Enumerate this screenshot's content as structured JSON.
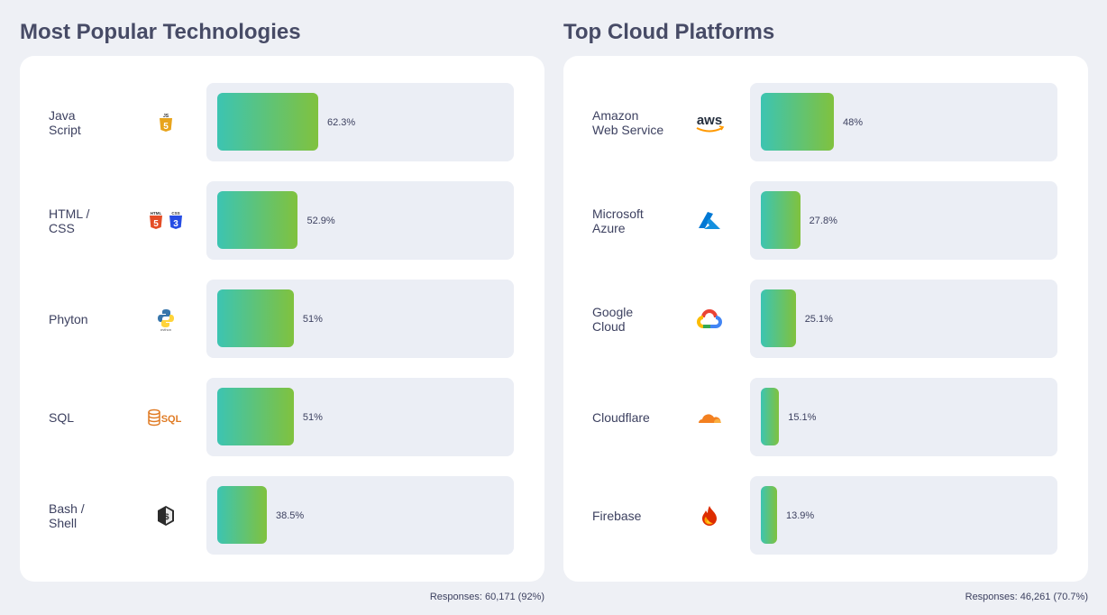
{
  "chart_data": [
    {
      "type": "bar",
      "orientation": "horizontal",
      "title": "Most Popular Technologies",
      "categories": [
        "Java\nScript",
        "HTML /\nCSS",
        "Phyton",
        "SQL",
        "Bash /\nShell"
      ],
      "icons": [
        "javascript-icon",
        "html-css-icon",
        "python-icon",
        "sql-icon",
        "bash-icon"
      ],
      "values": [
        62.3,
        52.9,
        51,
        51,
        38.5
      ],
      "value_labels": [
        "62.3%",
        "52.9%",
        "51%",
        "51%",
        "38.5%"
      ],
      "footer": "Responses: 60,171 (92%)"
    },
    {
      "type": "bar",
      "orientation": "horizontal",
      "title": "Top Cloud Platforms",
      "categories": [
        "Amazon\nWeb Service",
        "Microsoft\nAzure",
        "Google\nCloud",
        "Cloudflare",
        "Firebase"
      ],
      "icons": [
        "aws-icon",
        "azure-icon",
        "google-cloud-icon",
        "cloudflare-icon",
        "firebase-icon"
      ],
      "values": [
        48,
        27.8,
        25.1,
        15.1,
        13.9
      ],
      "value_labels": [
        "48%",
        "27.8%",
        "25.1%",
        "15.1%",
        "13.9%"
      ],
      "footer": "Responses: 46,261 (70.7%)"
    }
  ],
  "colors": {
    "bar_start": "#3cc4b2",
    "bar_end": "#80c23e",
    "track": "#ebeef5",
    "background": "#eef0f5"
  }
}
